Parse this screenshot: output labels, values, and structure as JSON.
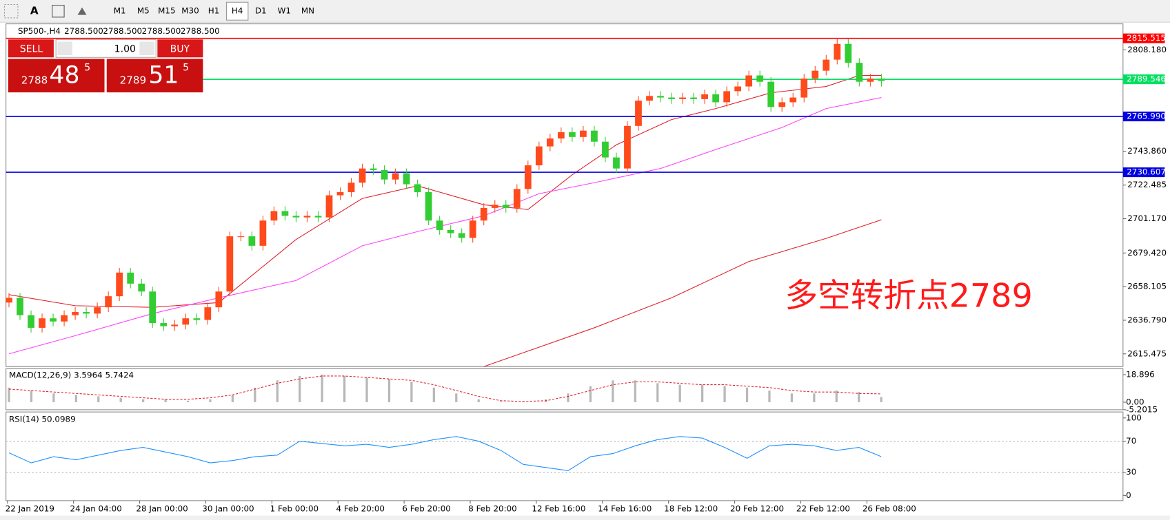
{
  "toolbar": {
    "periods": [
      "M1",
      "M5",
      "M15",
      "M30",
      "H1",
      "H4",
      "D1",
      "W1",
      "MN"
    ],
    "active": "H4"
  },
  "header": {
    "symbol": "SP500-,H4",
    "quotes": [
      "2788.500",
      "2788.500",
      "2788.500",
      "2788.500"
    ]
  },
  "trade_panel": {
    "sell": "SELL",
    "lot": "1.00",
    "buy": "BUY",
    "sell_price": {
      "big": "2788",
      "main": "48",
      "small": "5"
    },
    "buy_price": {
      "big": "2789",
      "main": "51",
      "small": "5"
    }
  },
  "chart_data": [
    {
      "type": "candlestick",
      "ylim": [
        2607.44,
        2824.71
      ],
      "yticks": [
        {
          "value": 2808.18,
          "label": "2808.180"
        },
        {
          "value": 2743.86,
          "label": "2743.860"
        },
        2722.485,
        {
          "value": 2701.17,
          "label": "2701.170"
        },
        {
          "value": 2679.42,
          "label": "2679.420"
        },
        2658.105,
        {
          "value": 2636.79,
          "label": "2636.790"
        },
        2615.475
      ],
      "x_labels": [
        "22 Jan 2019",
        "24 Jan 04:00",
        "28 Jan 00:00",
        "30 Jan 00:00",
        "1 Feb 00:00",
        "4 Feb 20:00",
        "6 Feb 20:00",
        "8 Feb 20:00",
        "12 Feb 16:00",
        "14 Feb 16:00",
        "18 Feb 12:00",
        "20 Feb 12:00",
        "22 Feb 12:00",
        "26 Feb 08:00"
      ],
      "up_color": "#ff4a1c",
      "down_color": "#32cd32",
      "candles": {
        "open": [
          2648,
          2651,
          2640,
          2632,
          2638,
          2636,
          2640,
          2642,
          2641,
          2645,
          2652,
          2667,
          2660,
          2655,
          2635,
          2633,
          2634,
          2638,
          2637,
          2645,
          2655,
          2690,
          2690,
          2684,
          2700,
          2706,
          2703,
          2702,
          2703,
          2702,
          2716,
          2718,
          2724,
          2733,
          2732,
          2726,
          2730,
          2723,
          2718,
          2700,
          2694,
          2692,
          2689,
          2700,
          2708,
          2710,
          2708,
          2720,
          2735,
          2747,
          2752,
          2756,
          2753,
          2757,
          2750,
          2740,
          2733,
          2760,
          2776,
          2779,
          2778,
          2777,
          2778,
          2777,
          2780,
          2775,
          2782,
          2785,
          2792,
          2788,
          2772,
          2775,
          2778,
          2790,
          2795,
          2802,
          2812,
          2800,
          2788,
          2790
        ],
        "high": [
          2654,
          2654,
          2643,
          2641,
          2641,
          2643,
          2645,
          2645,
          2648,
          2655,
          2670,
          2670,
          2663,
          2658,
          2638,
          2637,
          2641,
          2641,
          2648,
          2658,
          2693,
          2693,
          2693,
          2703,
          2709,
          2709,
          2706,
          2706,
          2706,
          2719,
          2721,
          2727,
          2736,
          2736,
          2735,
          2733,
          2733,
          2726,
          2721,
          2703,
          2697,
          2695,
          2703,
          2711,
          2713,
          2713,
          2723,
          2738,
          2750,
          2755,
          2759,
          2759,
          2760,
          2760,
          2753,
          2743,
          2763,
          2779,
          2782,
          2782,
          2781,
          2781,
          2781,
          2783,
          2783,
          2785,
          2788,
          2795,
          2795,
          2791,
          2778,
          2781,
          2793,
          2798,
          2805,
          2815,
          2815,
          2803,
          2793,
          2793
        ],
        "low": [
          2645,
          2637,
          2629,
          2629,
          2633,
          2633,
          2637,
          2638,
          2638,
          2642,
          2649,
          2657,
          2652,
          2632,
          2630,
          2630,
          2631,
          2634,
          2634,
          2642,
          2652,
          2687,
          2681,
          2681,
          2697,
          2700,
          2699,
          2699,
          2699,
          2699,
          2713,
          2715,
          2721,
          2729,
          2723,
          2723,
          2720,
          2715,
          2697,
          2691,
          2689,
          2686,
          2686,
          2697,
          2705,
          2705,
          2705,
          2717,
          2732,
          2744,
          2749,
          2750,
          2750,
          2747,
          2737,
          2730,
          2730,
          2757,
          2773,
          2775,
          2774,
          2774,
          2774,
          2774,
          2772,
          2772,
          2779,
          2782,
          2785,
          2769,
          2769,
          2772,
          2775,
          2787,
          2792,
          2799,
          2797,
          2785,
          2785,
          2785
        ],
        "close": [
          2651,
          2640,
          2632,
          2638,
          2636,
          2640,
          2642,
          2641,
          2645,
          2652,
          2667,
          2660,
          2655,
          2635,
          2633,
          2634,
          2638,
          2637,
          2645,
          2655,
          2690,
          2690,
          2684,
          2700,
          2706,
          2703,
          2702,
          2703,
          2702,
          2716,
          2718,
          2724,
          2733,
          2732,
          2726,
          2730,
          2723,
          2718,
          2700,
          2694,
          2692,
          2689,
          2700,
          2708,
          2710,
          2708,
          2720,
          2735,
          2747,
          2752,
          2756,
          2753,
          2757,
          2750,
          2740,
          2733,
          2760,
          2776,
          2779,
          2778,
          2777,
          2778,
          2777,
          2780,
          2775,
          2782,
          2785,
          2792,
          2788,
          2772,
          2775,
          2778,
          2790,
          2795,
          2802,
          2812,
          2800,
          2788,
          2790,
          2788.5
        ]
      },
      "moving_averages": [
        {
          "color": "#e0202a",
          "x": [
            0,
            6,
            13,
            19,
            26,
            32,
            37,
            43,
            47,
            51,
            55,
            60,
            64,
            69,
            74,
            77,
            79
          ],
          "values": [
            2653,
            2646,
            2645,
            2648,
            2688,
            2714,
            2722,
            2710,
            2707,
            2729,
            2748,
            2764,
            2771,
            2781,
            2785,
            2792,
            2792
          ]
        },
        {
          "color": "#ff40ff",
          "x": [
            0,
            6,
            13,
            19,
            26,
            32,
            37,
            43,
            48,
            53,
            59,
            64,
            70,
            74,
            79
          ],
          "values": [
            2615.5,
            2627,
            2641,
            2651,
            2662,
            2684,
            2693,
            2703,
            2717,
            2724,
            2733,
            2745,
            2759,
            2771,
            2778
          ]
        },
        {
          "color": "#e0202a",
          "x": [
            43,
            53,
            60,
            67,
            74,
            79
          ],
          "values": [
            2607.4,
            2632,
            2651,
            2674,
            2688.7,
            2700.5
          ]
        }
      ],
      "hlines": [
        {
          "value": 2815.515,
          "color": "#ff0000"
        },
        {
          "value": 2789.546,
          "color": "#00e060"
        },
        {
          "value": 2765.99,
          "label": "2765.990",
          "color": "#0000e0"
        },
        {
          "value": 2730.607,
          "color": "#0000e0"
        }
      ],
      "annotation": "多空转折点2789",
      "annotation_color": "#ff1a1a"
    },
    {
      "type": "macd",
      "title": "MACD(12,26,9) 3.5964 5.7424",
      "ylim": [
        -5.2015,
        22.98
      ],
      "yticks": [
        18.896,
        {
          "value": 0,
          "label": "0.00"
        },
        -5.2015
      ],
      "histogram": [
        10,
        8,
        6,
        5,
        4,
        3,
        2,
        2,
        1,
        2,
        5,
        10,
        15,
        18,
        19,
        18,
        17,
        16,
        14,
        10,
        6,
        2,
        0.5,
        0.3,
        2,
        6,
        11,
        15,
        15,
        13,
        12,
        12,
        11,
        10,
        8,
        6,
        6,
        8,
        7,
        3.6
      ],
      "signal": [
        9,
        8,
        7,
        6,
        5,
        4,
        3,
        2,
        2,
        3,
        5,
        9,
        13,
        16,
        18,
        18,
        17,
        16,
        15,
        12,
        8,
        4,
        1,
        0.5,
        1,
        4,
        8,
        12,
        14,
        14,
        13,
        12,
        12,
        11,
        10,
        8,
        7,
        7,
        6,
        5.7
      ],
      "histogram_color": "#b8b8b8",
      "signal_color": "#e0202a"
    },
    {
      "type": "line",
      "title": "RSI(14) 50.0989",
      "ylim": [
        -6.7,
        107.7
      ],
      "yticks": [
        100,
        70,
        30,
        0
      ],
      "values": [
        55,
        42,
        50,
        46,
        52,
        58,
        62,
        56,
        50,
        42,
        45,
        50,
        52,
        70,
        67,
        64,
        66,
        62,
        66,
        72,
        76,
        70,
        58,
        40,
        36,
        32,
        50,
        54,
        64,
        72,
        76,
        74,
        62,
        48,
        64,
        66,
        64,
        58,
        62,
        50.0989
      ],
      "color": "#1e90ff"
    }
  ]
}
